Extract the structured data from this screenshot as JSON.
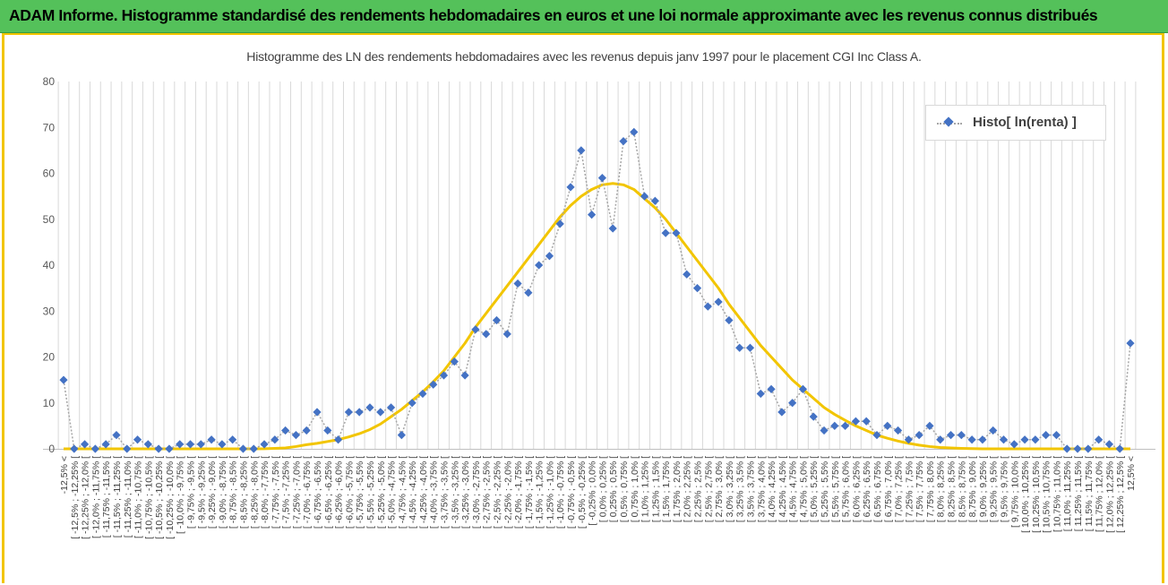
{
  "banner": {
    "title": "ADAM Informe. Histogramme standardisé des rendements hebdomadaires en euros et une loi normale approximante avec les revenus connus distribués"
  },
  "chart_data": {
    "type": "line",
    "title": "Histogramme  des LN des rendements  hebdomadaires avec les revenus depuis janv 1997 pour le placement CGI Inc Class A.",
    "xlabel": "",
    "ylabel": "",
    "ylim": [
      0,
      80
    ],
    "yticks": [
      "0",
      "10",
      "20",
      "30",
      "40",
      "50",
      "60",
      "70",
      "80"
    ],
    "grid": "vertical",
    "legend_position": "top-right",
    "colors": {
      "histo": "#4472c4",
      "normal": "#f2c500",
      "connector": "#a6a6a6",
      "grid": "#d9d9d9"
    },
    "categories": [
      "-12,5% <",
      "[ -12,5% ; -12,25% [",
      "[ -12,25% ; -12,0% [",
      "[ -12,0% ; -11,75% [",
      "[ -11,75% ; -11,5% [",
      "[ -11,5% ; -11,25% [",
      "[ -11,25% ; -11,0% [",
      "[ -11,0% ; -10,75% [",
      "[ -10,75% ; -10,5% [",
      "[ -10,5% ; -10,25% [",
      "[ -10,25% ; -10,0% [",
      "[ -10,0% ; -9,75% [",
      "[ -9,75% ; -9,5% [",
      "[ -9,5% ; -9,25% [",
      "[ -9,25% ; -9,0% [",
      "[ -9,0% ; -8,75% [",
      "[ -8,75% ; -8,5% [",
      "[ -8,5% ; -8,25% [",
      "[ -8,25% ; -8,0% [",
      "[ -8,0% ; -7,75% [",
      "[ -7,75% ; -7,5% [",
      "[ -7,5% ; -7,25% [",
      "[ -7,25% ; -7,0% [",
      "[ -7,0% ; -6,75% [",
      "[ -6,75% ; -6,5% [",
      "[ -6,5% ; -6,25% [",
      "[ -6,25% ; -6,0% [",
      "[ -6,0% ; -5,75% [",
      "[ -5,75% ; -5,5% [",
      "[ -5,5% ; -5,25% [",
      "[ -5,25% ; -5,0% [",
      "[ -5,0% ; -4,75% [",
      "[ -4,75% ; -4,5% [",
      "[ -4,5% ; -4,25% [",
      "[ -4,25% ; -4,0% [",
      "[ -4,0% ; -3,75% [",
      "[ -3,75% ; -3,5% [",
      "[ -3,5% ; -3,25% [",
      "[ -3,25% ; -3,0% [",
      "[ -3,0% ; -2,75% [",
      "[ -2,75% ; -2,5% [",
      "[ -2,5% ; -2,25% [",
      "[ -2,25% ; -2,0% [",
      "[ -2,0% ; -1,75% [",
      "[ -1,75% ; -1,5% [",
      "[ -1,5% ; -1,25% [",
      "[ -1,25% ; -1,0% [",
      "[ -1,0% ; -0,75% [",
      "[ -0,75% ; -0,5% [",
      "[ -0,5% ; -0,25% [",
      "[ -0,25% ; 0,0% [",
      "[ 0,0% ; 0,25% [",
      "[ 0,25% ; 0,5% [",
      "[ 0,5% ; 0,75% [",
      "[ 0,75% ; 1,0% [",
      "[ 1,0% ; 1,25% [",
      "[ 1,25% ; 1,5% [",
      "[ 1,5% ; 1,75% [",
      "[ 1,75% ; 2,0% [",
      "[ 2,0% ; 2,25% [",
      "[ 2,25% ; 2,5% [",
      "[ 2,5% ; 2,75% [",
      "[ 2,75% ; 3,0% [",
      "[ 3,0% ; 3,25% [",
      "[ 3,25% ; 3,5% [",
      "[ 3,5% ; 3,75% [",
      "[ 3,75% ; 4,0% [",
      "[ 4,0% ; 4,25% [",
      "[ 4,25% ; 4,5% [",
      "[ 4,5% ; 4,75% [",
      "[ 4,75% ; 5,0% [",
      "[ 5,0% ; 5,25% [",
      "[ 5,25% ; 5,5% [",
      "[ 5,5% ; 5,75% [",
      "[ 5,75% ; 6,0% [",
      "[ 6,0% ; 6,25% [",
      "[ 6,25% ; 6,5% [",
      "[ 6,5% ; 6,75% [",
      "[ 6,75% ; 7,0% [",
      "[ 7,0% ; 7,25% [",
      "[ 7,25% ; 7,5% [",
      "[ 7,5% ; 7,75% [",
      "[ 7,75% ; 8,0% [",
      "[ 8,0% ; 8,25% [",
      "[ 8,25% ; 8,5% [",
      "[ 8,5% ; 8,75% [",
      "[ 8,75% ; 9,0% [",
      "[ 9,0% ; 9,25% [",
      "[ 9,25% ; 9,5% [",
      "[ 9,5% ; 9,75% [",
      "[ 9,75% ; 10,0% [",
      "[ 10,0% ; 10,25% [",
      "[ 10,25% ; 10,5% [",
      "[ 10,5% ; 10,75% [",
      "[ 10,75% ; 11,0% [",
      "[ 11,0% ; 11,25% [",
      "[ 11,25% ; 11,5% [",
      "[ 11,5% ; 11,75% [",
      "[ 11,75% ; 12,0% [",
      "[ 12,0% ; 12,25% [",
      "[ 12,25% ; 12,5% [",
      "12,5% <"
    ],
    "series": [
      {
        "name": "Histo[ ln(renta) ]",
        "values": [
          15,
          0,
          1,
          0,
          1,
          3,
          0,
          2,
          1,
          0,
          0,
          1,
          1,
          1,
          2,
          1,
          2,
          0,
          0,
          1,
          2,
          4,
          3,
          4,
          8,
          4,
          2,
          8,
          8,
          9,
          8,
          9,
          3,
          10,
          12,
          14,
          16,
          19,
          16,
          26,
          25,
          28,
          25,
          36,
          34,
          40,
          42,
          49,
          57,
          65,
          51,
          59,
          48,
          67,
          69,
          55,
          54,
          47,
          47,
          38,
          35,
          31,
          32,
          28,
          22,
          22,
          12,
          13,
          8,
          10,
          13,
          7,
          4,
          5,
          5,
          6,
          6,
          3,
          5,
          4,
          2,
          3,
          5,
          2,
          3,
          3,
          2,
          2,
          4,
          2,
          1,
          2,
          2,
          3,
          3,
          0,
          0,
          0,
          2,
          1,
          0,
          23
        ]
      },
      {
        "values": [
          0,
          0,
          0,
          0,
          0,
          0,
          0,
          0,
          0,
          0,
          0,
          0,
          0,
          0,
          0,
          0,
          0,
          0,
          0.01,
          0.02,
          0.1,
          0.2,
          0.5,
          0.9,
          1.2,
          1.6,
          2.0,
          2.6,
          3.3,
          4.2,
          5.4,
          7.0,
          8.6,
          10.5,
          12.4,
          14.6,
          17.0,
          20.0,
          23.0,
          26.5,
          29.5,
          32.5,
          35.5,
          38.5,
          41.5,
          44.5,
          47.5,
          50.5,
          53.0,
          55.0,
          56.5,
          57.5,
          57.8,
          57.5,
          56.5,
          54.5,
          52.5,
          50.0,
          47.0,
          44.0,
          41.0,
          38.0,
          35.0,
          31.5,
          28.5,
          25.5,
          22.5,
          20.0,
          17.5,
          15.0,
          13.0,
          11.0,
          9.0,
          7.5,
          6.2,
          5.0,
          4.0,
          3.0,
          2.3,
          1.7,
          1.2,
          0.8,
          0.5,
          0.3,
          0.2,
          0.1,
          0.05,
          0,
          0,
          0,
          0,
          0,
          0,
          0,
          0,
          0,
          0,
          0,
          0,
          0,
          0,
          0
        ]
      }
    ]
  }
}
